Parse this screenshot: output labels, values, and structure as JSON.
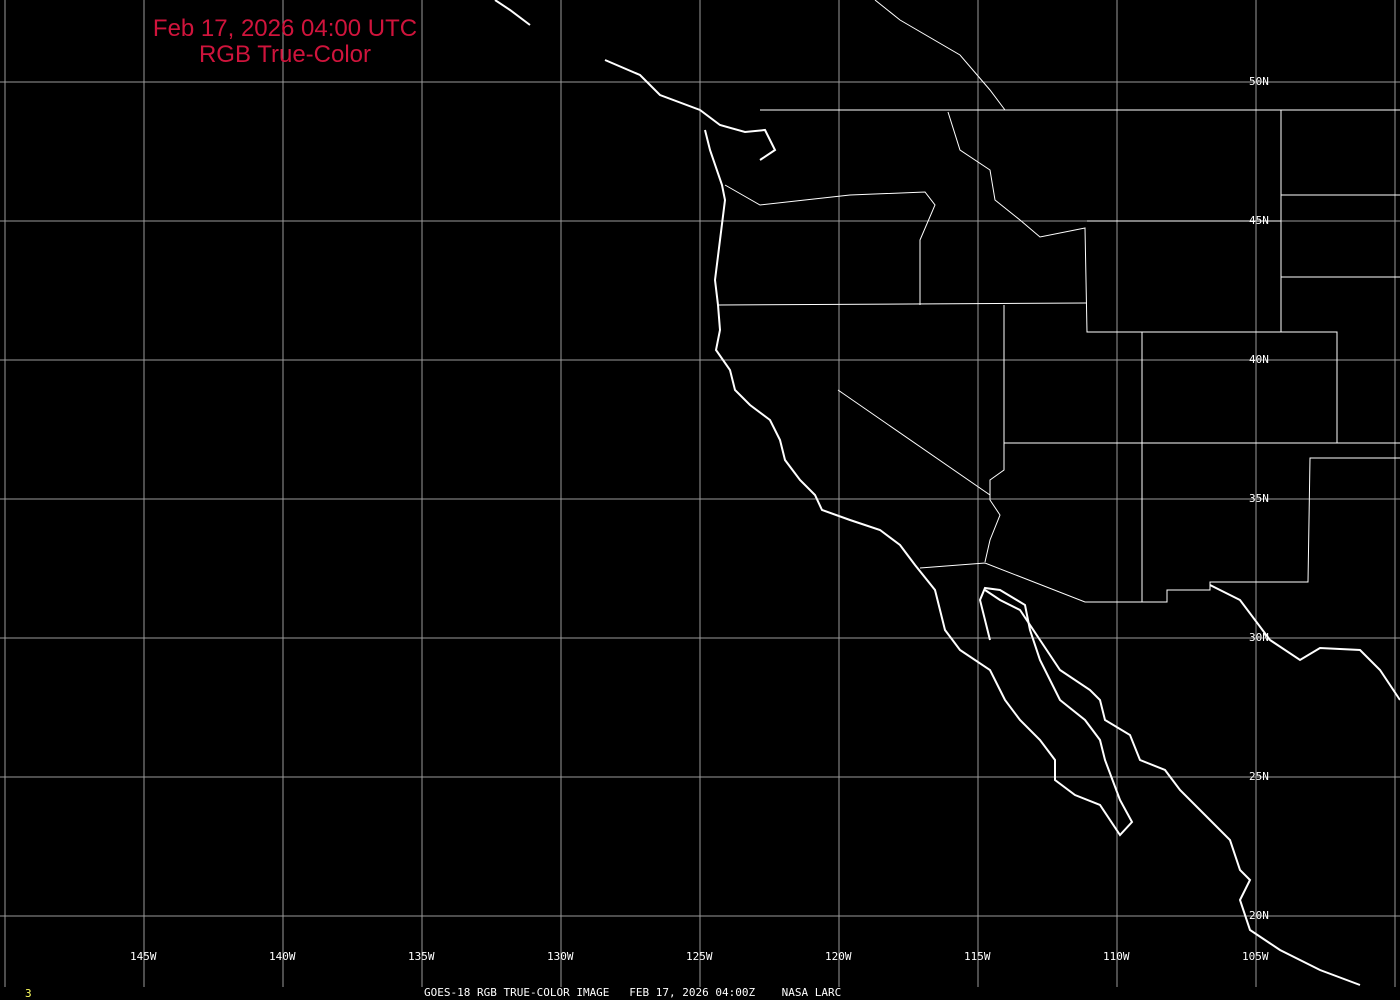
{
  "title": {
    "line1": "Feb 17, 2026 04:00 UTC",
    "line2": "RGB True-Color"
  },
  "lon_labels": [
    "145W",
    "140W",
    "135W",
    "130W",
    "125W",
    "120W",
    "115W",
    "110W",
    "105W"
  ],
  "lat_labels": [
    "50N",
    "45N",
    "40N",
    "35N",
    "30N",
    "25N",
    "20N"
  ],
  "footer": {
    "frame_number": "3",
    "caption": "GOES-18 RGB TRUE-COLOR IMAGE   FEB 17, 2026 04:00Z    NASA LARC"
  },
  "colors": {
    "background": "#000000",
    "grid": "#9a9a9a",
    "coastline": "#ffffff",
    "title": "#d0143c",
    "frame_number": "#ffff60"
  }
}
